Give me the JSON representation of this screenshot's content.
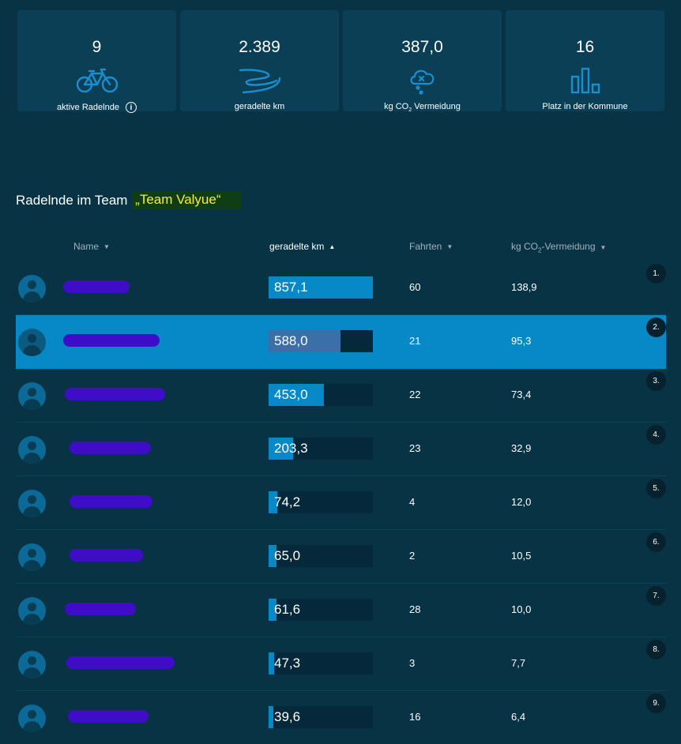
{
  "stats": [
    {
      "value": "9",
      "label": "aktive Radelnde",
      "icon": "bicycle-icon",
      "has_info": true
    },
    {
      "value": "2.389",
      "label": "geradelte km",
      "icon": "road-icon"
    },
    {
      "value": "387,0",
      "label_pre": "kg CO",
      "label_sub": "2",
      "label_post": " Vermeidung",
      "icon": "cloud-icon"
    },
    {
      "value": "16",
      "label": "Platz in der Kommune",
      "icon": "bar-chart-icon"
    }
  ],
  "team": {
    "heading": "Radelnde im Team ",
    "name": "„Team Valyue“"
  },
  "columns": {
    "name": "Name",
    "km": "geradelte km",
    "trips": "Fahrten",
    "co2_pre": "kg CO",
    "co2_sub": "2",
    "co2_post": "-Vermeidung"
  },
  "colors": {
    "background": "#083344",
    "card": "#0b3f55",
    "accent": "#0788c7",
    "icon": "#1a8fd0",
    "team_name": "#f3ee3a",
    "redaction": "#3f0cc8"
  },
  "rows": [
    {
      "rank": "1.",
      "km": "857,1",
      "km_fraction": 1.0,
      "trips": "60",
      "co2": "138,9"
    },
    {
      "rank": "2.",
      "km": "588,0",
      "km_fraction": 0.686,
      "trips": "21",
      "co2": "95,3",
      "highlight": true
    },
    {
      "rank": "3.",
      "km": "453,0",
      "km_fraction": 0.529,
      "trips": "22",
      "co2": "73,4"
    },
    {
      "rank": "4.",
      "km": "203,3",
      "km_fraction": 0.237,
      "trips": "23",
      "co2": "32,9"
    },
    {
      "rank": "5.",
      "km": "74,2",
      "km_fraction": 0.087,
      "trips": "4",
      "co2": "12,0"
    },
    {
      "rank": "6.",
      "km": "65,0",
      "km_fraction": 0.076,
      "trips": "2",
      "co2": "10,5"
    },
    {
      "rank": "7.",
      "km": "61,6",
      "km_fraction": 0.072,
      "trips": "28",
      "co2": "10,0"
    },
    {
      "rank": "8.",
      "km": "47,3",
      "km_fraction": 0.055,
      "trips": "3",
      "co2": "7,7"
    },
    {
      "rank": "9.",
      "km": "39,6",
      "km_fraction": 0.046,
      "trips": "16",
      "co2": "6,4"
    }
  ]
}
